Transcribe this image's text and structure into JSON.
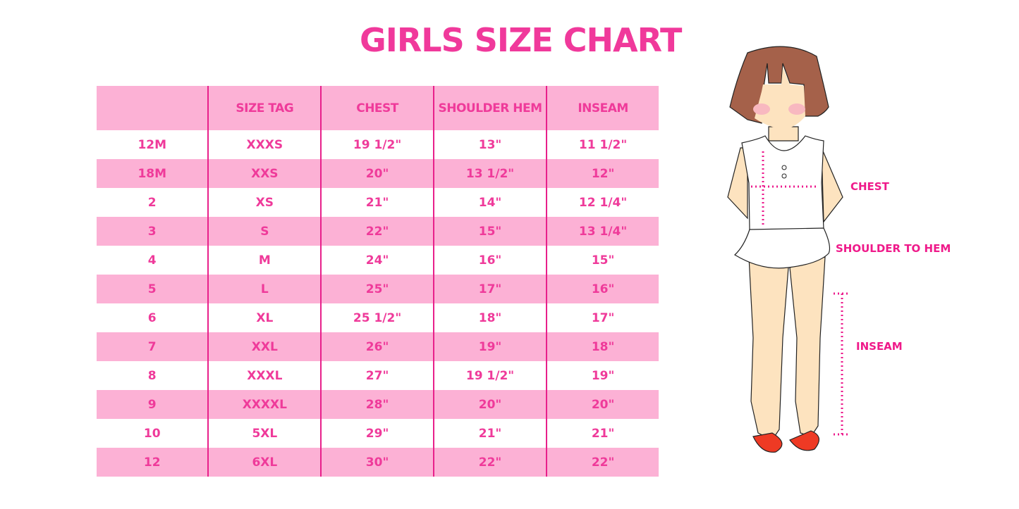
{
  "title": "GIRLS SIZE CHART",
  "table": {
    "headers": [
      "",
      "SIZE TAG",
      "CHEST",
      "SHOULDER HEM",
      "INSEAM"
    ],
    "rows": [
      [
        "12M",
        "XXXS",
        "19 1/2\"",
        "13\"",
        "11 1/2\""
      ],
      [
        "18M",
        "XXS",
        "20\"",
        "13 1/2\"",
        "12\""
      ],
      [
        "2",
        "XS",
        "21\"",
        "14\"",
        "12 1/4\""
      ],
      [
        "3",
        "S",
        "22\"",
        "15\"",
        "13 1/4\""
      ],
      [
        "4",
        "M",
        "24\"",
        "16\"",
        "15\""
      ],
      [
        "5",
        "L",
        "25\"",
        "17\"",
        "16\""
      ],
      [
        "6",
        "XL",
        "25 1/2\"",
        "18\"",
        "17\""
      ],
      [
        "7",
        "XXL",
        "26\"",
        "19\"",
        "18\""
      ],
      [
        "8",
        "XXXL",
        "27\"",
        "19 1/2\"",
        "19\""
      ],
      [
        "9",
        "XXXXL",
        "28\"",
        "20\"",
        "20\""
      ],
      [
        "10",
        "5XL",
        "29\"",
        "21\"",
        "21\""
      ],
      [
        "12",
        "6XL",
        "30\"",
        "22\"",
        "22\""
      ]
    ]
  },
  "illustration": {
    "labels": {
      "chest": "CHEST",
      "shoulder": "SHOULDER TO HEM",
      "inseam": "INSEAM"
    }
  },
  "colors": {
    "accent": "#f0399b",
    "row_pink": "#fcb1d5",
    "divider": "#e8208b"
  }
}
